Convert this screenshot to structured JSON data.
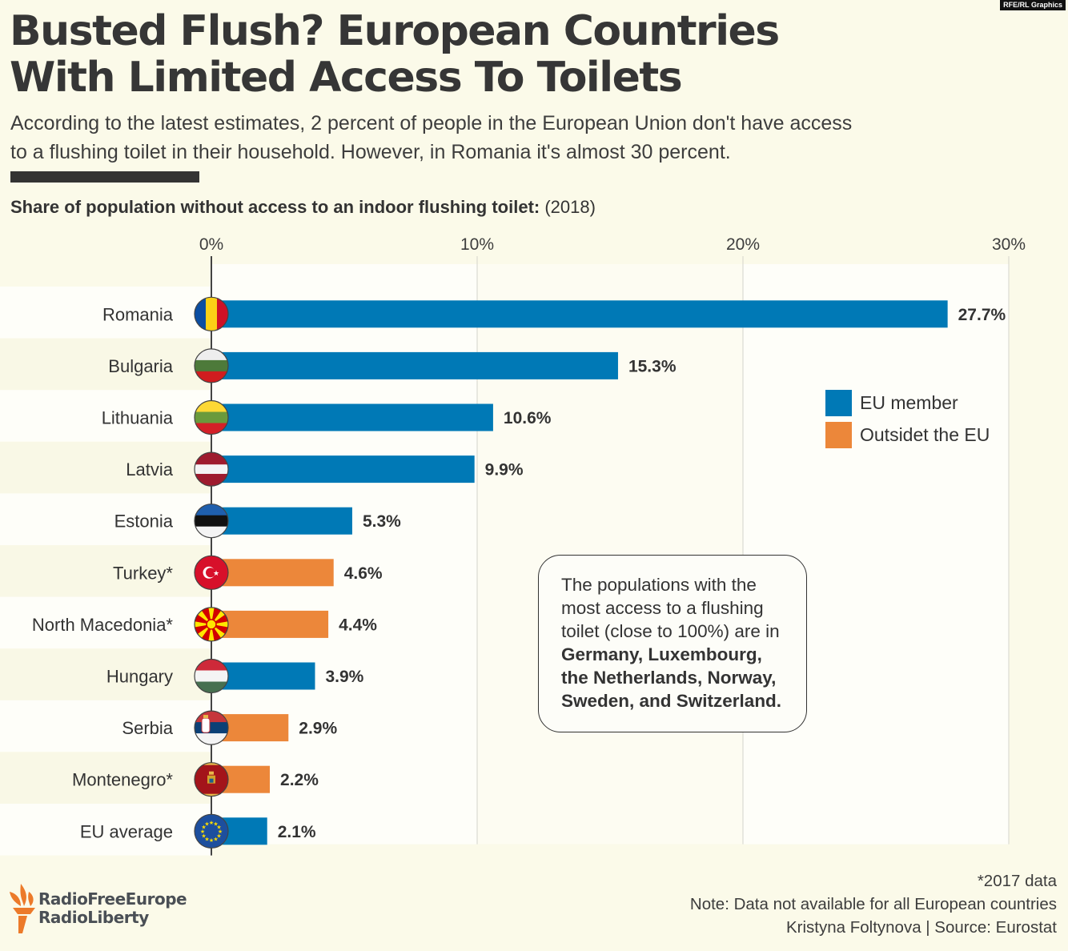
{
  "credit_tag": "RFE/RL Graphics",
  "header": {
    "title_line1": "Busted Flush? European Countries",
    "title_line2": "With Limited Access To Toilets",
    "subtitle_line1": "According to the latest estimates, 2 percent of people in the European Union don't have access",
    "subtitle_line2": "to a flushing toilet in their household. However, in Romania it's almost 30 percent."
  },
  "chart_label": {
    "bold": "Share of population without access to an indoor flushing toilet:",
    "regular": "(2018)"
  },
  "colors": {
    "eu_member": "#0079b6",
    "outside_eu": "#ec873a",
    "text": "#333333",
    "background": "#fbfae9"
  },
  "chart_data": {
    "type": "bar",
    "orientation": "horizontal",
    "title": "Share of population without access to an indoor flushing toilet: (2018)",
    "xlabel": "",
    "ylabel": "",
    "xlim": [
      0,
      30
    ],
    "x_ticks": [
      "0%",
      "10%",
      "20%",
      "30%"
    ],
    "x_tick_values": [
      0,
      10,
      20,
      30
    ],
    "grid": true,
    "legend_position": "right",
    "legend": [
      {
        "name": "EU member",
        "color": "#0079b6"
      },
      {
        "name": "Outsidet the EU",
        "color": "#ec873a"
      }
    ],
    "categories": [
      "Romania",
      "Bulgaria",
      "Lithuania",
      "Latvia",
      "Estonia",
      "Turkey*",
      "North Macedonia*",
      "Hungary",
      "Serbia",
      "Montenegro*",
      "EU average"
    ],
    "values": [
      27.7,
      15.3,
      10.6,
      9.9,
      5.3,
      4.6,
      4.4,
      3.9,
      2.9,
      2.2,
      2.1
    ],
    "value_labels": [
      "27.7%",
      "15.3%",
      "10.6%",
      "9.9%",
      "5.3%",
      "4.6%",
      "4.4%",
      "3.9%",
      "2.9%",
      "2.2%",
      "2.1%"
    ],
    "group": [
      "EU member",
      "EU member",
      "EU member",
      "EU member",
      "EU member",
      "Outsidet the EU",
      "Outsidet the EU",
      "EU member",
      "Outsidet the EU",
      "Outsidet the EU",
      "EU member"
    ],
    "flags": [
      "romania-flag-icon",
      "bulgaria-flag-icon",
      "lithuania-flag-icon",
      "latvia-flag-icon",
      "estonia-flag-icon",
      "turkey-flag-icon",
      "north-macedonia-flag-icon",
      "hungary-flag-icon",
      "serbia-flag-icon",
      "montenegro-flag-icon",
      "eu-flag-icon"
    ]
  },
  "note_box": {
    "regular": [
      "The populations with the",
      "most access to a flushing",
      "toilet (close to 100%) are in"
    ],
    "bold": [
      "Germany, Luxembourg,",
      "the Netherlands, Norway,",
      "Sweden, and Switzerland."
    ]
  },
  "footer": {
    "data_note": "*2017 data",
    "availability_note": "Note: Data not available for all European countries",
    "source": "Kristyna Foltynova | Source: Eurostat"
  },
  "logo": {
    "line1": "RadioFreeEurope",
    "line2": "RadioLiberty"
  }
}
